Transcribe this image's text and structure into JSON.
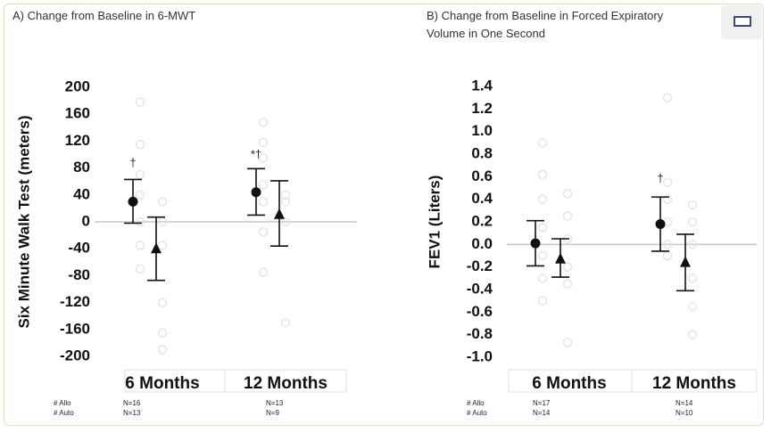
{
  "chart_data": [
    {
      "type": "scatter",
      "title": "A) Change from Baseline in 6-MWT",
      "ylabel": "Six Minute Walk Test (meters)",
      "ylim": [
        -200,
        200
      ],
      "yticks": [
        "200",
        "160",
        "120",
        "80",
        "40",
        "0",
        "-40",
        "-80",
        "-120",
        "-160",
        "-200"
      ],
      "categories": [
        "6 Months",
        "12 Months"
      ],
      "grid": false,
      "series": [
        {
          "marker": "circle",
          "color": "#111111",
          "values": [
            30,
            44
          ],
          "lower": [
            -2,
            10
          ],
          "upper": [
            63,
            79
          ]
        },
        {
          "marker": "triangle",
          "color": "#111111",
          "values": [
            -40,
            11
          ],
          "lower": [
            -87,
            -36
          ],
          "upper": [
            7,
            61
          ]
        }
      ],
      "scatter_points": [
        {
          "category": 0,
          "side": 0,
          "values": [
            178,
            115,
            70,
            40,
            0,
            -35,
            -70
          ]
        },
        {
          "category": 0,
          "side": 1,
          "values": [
            30,
            0,
            -35,
            -120,
            -165,
            -190
          ]
        },
        {
          "category": 1,
          "side": 0,
          "values": [
            148,
            118,
            95,
            55,
            30,
            -15,
            -75
          ]
        },
        {
          "category": 1,
          "side": 1,
          "values": [
            40,
            30,
            0,
            -150
          ]
        }
      ],
      "annotations": [
        {
          "text": "†",
          "category": 0,
          "y": 82
        },
        {
          "text": "*†",
          "category": 1,
          "y": 95
        }
      ],
      "footer_labels": [
        "# Allo",
        "# Auto"
      ],
      "footer_values": [
        [
          "N=16",
          "N=13"
        ],
        [
          "N=13",
          "N=9"
        ]
      ]
    },
    {
      "type": "scatter",
      "title": [
        "B) Change from Baseline in Forced Expiratory",
        "Volume in One Second"
      ],
      "ylabel": "FEV1 (Liters)",
      "ylim": [
        -1.0,
        1.4
      ],
      "yticks": [
        "1.4",
        "1.2",
        "1.0",
        "0.8",
        "0.6",
        "0.4",
        "0.2",
        "0.0",
        "-0.2",
        "-0.4",
        "-0.6",
        "-0.8",
        "-1.0"
      ],
      "categories": [
        "6 Months",
        "12 Months"
      ],
      "grid": false,
      "series": [
        {
          "marker": "circle",
          "color": "#111111",
          "values": [
            0.01,
            0.18
          ],
          "lower": [
            -0.19,
            -0.06
          ],
          "upper": [
            0.21,
            0.42
          ]
        },
        {
          "marker": "triangle",
          "color": "#111111",
          "values": [
            -0.13,
            -0.16
          ],
          "lower": [
            -0.29,
            -0.41
          ],
          "upper": [
            0.05,
            0.09
          ]
        }
      ],
      "scatter_points": [
        {
          "category": 0,
          "side": 0,
          "values": [
            0.9,
            0.62,
            0.4,
            0.15,
            -0.1,
            -0.3,
            -0.5
          ]
        },
        {
          "category": 0,
          "side": 1,
          "values": [
            0.45,
            0.25,
            0.05,
            -0.2,
            -0.35,
            -0.87
          ]
        },
        {
          "category": 1,
          "side": 0,
          "values": [
            1.3,
            0.55,
            0.4,
            0.2,
            0.0,
            -0.1
          ]
        },
        {
          "category": 1,
          "side": 1,
          "values": [
            0.35,
            0.2,
            0.0,
            -0.3,
            -0.55,
            -0.8
          ]
        }
      ],
      "annotations": [
        {
          "text": "†",
          "category": 1,
          "y": 0.55
        }
      ],
      "footer_labels": [
        "# Allo",
        "# Auto"
      ],
      "footer_values": [
        [
          "N=17",
          "N=14"
        ],
        [
          "N=14",
          "N=10"
        ]
      ]
    }
  ],
  "ui": {
    "corner_icon": "square-outline-icon"
  }
}
